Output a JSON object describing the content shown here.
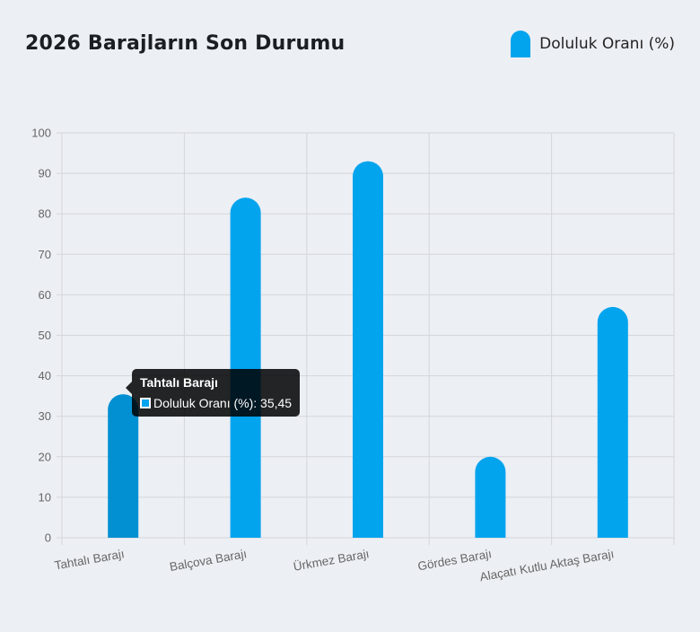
{
  "chart_data": {
    "type": "bar",
    "title": "2026 Barajların Son Durumu",
    "categories": [
      "Tahtalı Barajı",
      "Balçova Barajı",
      "Ürkmez Barajı",
      "Gördes Barajı",
      "Alaçatı Kutlu Aktaş Barajı"
    ],
    "series": [
      {
        "name": "Doluluk Oranı (%)",
        "values": [
          35.45,
          84,
          93,
          20,
          57
        ]
      }
    ],
    "ylim": [
      0,
      100
    ],
    "yticks": [
      0,
      10,
      20,
      30,
      40,
      50,
      60,
      70,
      80,
      90,
      100
    ],
    "grid": true,
    "legend": "top-right",
    "colors": {
      "bar": "#03a4ee",
      "bar_hover": "#0390d2",
      "grid": "#d3d6db"
    }
  },
  "tooltip": {
    "title": "Tahtalı Barajı",
    "label": "Doluluk Oranı (%): 35,45"
  }
}
